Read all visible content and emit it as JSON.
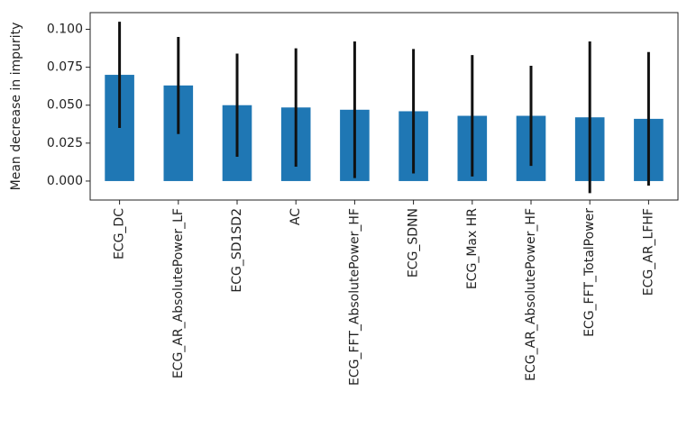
{
  "chart_data": {
    "type": "bar",
    "ylabel": "Mean decrease in impurity",
    "categories": [
      "ECG_DC",
      "ECG_AR_AbsolutePower_LF",
      "ECG_SD1SD2",
      "AC",
      "ECG_FFT_AbsolutePower_HF",
      "ECG_SDNN",
      "ECG_Max HR",
      "ECG_AR_AbsolutePower_HF",
      "ECG_FFT_TotalPower",
      "ECG_AR_LFHF"
    ],
    "values": [
      0.07,
      0.063,
      0.05,
      0.0485,
      0.047,
      0.046,
      0.043,
      0.043,
      0.042,
      0.041
    ],
    "errors": [
      0.035,
      0.032,
      0.034,
      0.039,
      0.045,
      0.041,
      0.04,
      0.033,
      0.05,
      0.044
    ],
    "color": "#1f77b4",
    "error_color": "#111111",
    "ylim": [
      -0.0125,
      0.111
    ],
    "yticks": [
      {
        "value": 0,
        "label": "0.000"
      },
      {
        "value": 0.025,
        "label": "0.025"
      },
      {
        "value": 0.05,
        "label": "0.050"
      },
      {
        "value": 0.075,
        "label": "0.075"
      },
      {
        "value": 0.1,
        "label": "0.100"
      }
    ],
    "grid": false
  }
}
